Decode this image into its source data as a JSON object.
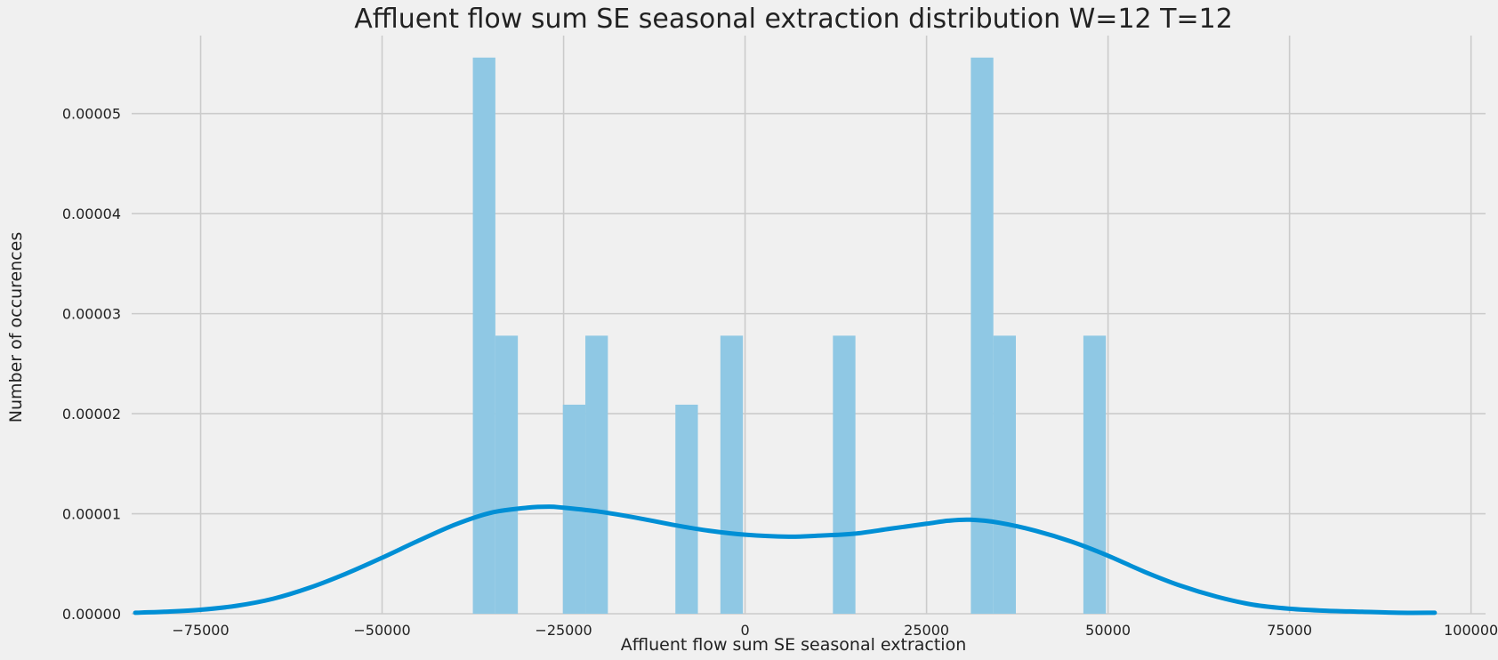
{
  "chart_data": {
    "type": "bar",
    "title": "Affluent flow sum SE seasonal extraction distribution W=12 T=12",
    "xlabel": "Affluent flow sum SE seasonal extraction",
    "ylabel": "Number of occurences",
    "xlim": [
      -84500,
      102000
    ],
    "ylim": [
      0,
      5.78e-05
    ],
    "x_ticks": [
      -75000,
      -50000,
      -25000,
      0,
      25000,
      50000,
      75000,
      100000
    ],
    "x_tick_labels": [
      "−75000",
      "−50000",
      "−25000",
      "0",
      "25000",
      "50000",
      "75000",
      "100000"
    ],
    "y_ticks": [
      0,
      1e-05,
      2e-05,
      3e-05,
      4e-05,
      5e-05
    ],
    "y_tick_labels": [
      "0.00000",
      "0.00001",
      "0.00002",
      "0.00003",
      "0.00004",
      "0.00005"
    ],
    "grid": true,
    "colors": {
      "background": "#f0f0f0",
      "grid": "#cbcbcb",
      "bars": "#8fc8e4",
      "kde_line": "#008fd5",
      "text": "#222222"
    },
    "histogram": {
      "bins": [
        {
          "start": -37500,
          "end": -34400,
          "density": 5.56e-05
        },
        {
          "start": -34400,
          "end": -31300,
          "density": 2.78e-05
        },
        {
          "start": -25100,
          "end": -22000,
          "density": 2.09e-05
        },
        {
          "start": -22000,
          "end": -18900,
          "density": 2.78e-05
        },
        {
          "start": -9600,
          "end": -6500,
          "density": 2.09e-05
        },
        {
          "start": -3400,
          "end": -300,
          "density": 2.78e-05
        },
        {
          "start": 12100,
          "end": 15200,
          "density": 2.78e-05
        },
        {
          "start": 31100,
          "end": 34200,
          "density": 5.56e-05
        },
        {
          "start": 34200,
          "end": 37300,
          "density": 2.78e-05
        },
        {
          "start": 46600,
          "end": 49700,
          "density": 2.78e-05
        }
      ]
    },
    "kde": {
      "x": [
        -84000,
        -80000,
        -75000,
        -70000,
        -65000,
        -60000,
        -55000,
        -50000,
        -45000,
        -40000,
        -35000,
        -30000,
        -27000,
        -25000,
        -20000,
        -15000,
        -10000,
        -5000,
        0,
        6000,
        10000,
        15000,
        20000,
        25000,
        28000,
        31000,
        35000,
        40000,
        45000,
        50000,
        55000,
        60000,
        65000,
        70000,
        75000,
        80000,
        85000,
        90000,
        95000
      ],
      "y": [
        1e-07,
        2e-07,
        4e-07,
        8e-07,
        1.5e-06,
        2.6e-06,
        4e-06,
        5.6e-06,
        7.3e-06,
        8.9e-06,
        1.01e-05,
        1.06e-05,
        1.07e-05,
        1.06e-05,
        1.02e-05,
        9.6e-06,
        8.9e-06,
        8.3e-06,
        7.9e-06,
        7.7e-06,
        7.8e-06,
        8e-06,
        8.5e-06,
        9e-06,
        9.3e-06,
        9.4e-06,
        9.1e-06,
        8.3e-06,
        7.2e-06,
        5.8e-06,
        4.2e-06,
        2.8e-06,
        1.7e-06,
        9e-07,
        5e-07,
        3e-07,
        2e-07,
        1e-07,
        1e-07
      ]
    }
  }
}
